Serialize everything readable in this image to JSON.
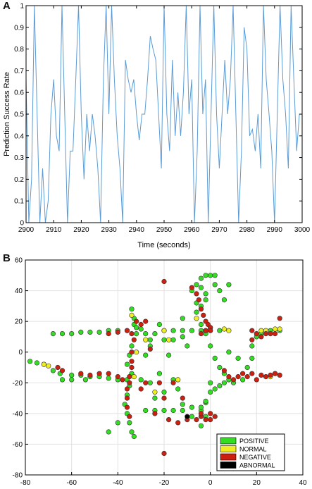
{
  "panels": {
    "a_label": "A",
    "b_label": "B"
  },
  "chart_data": [
    {
      "type": "line",
      "title": "",
      "xlabel": "Time (seconds)",
      "ylabel": "Prediction Success Rate",
      "xlim": [
        2900,
        3000
      ],
      "ylim": [
        0,
        1
      ],
      "xticks": [
        2900,
        2910,
        2920,
        2930,
        2940,
        2950,
        2960,
        2970,
        2980,
        2990,
        3000
      ],
      "yticks": [
        0,
        0.1,
        0.2,
        0.3,
        0.4,
        0.5,
        0.6,
        0.7,
        0.8,
        0.9,
        1
      ],
      "grid": false,
      "color": "#5b9bd5",
      "series": [
        {
          "x": [
            2900,
            2901,
            2902,
            2903,
            2904,
            2905,
            2906,
            2907,
            2908,
            2909,
            2910,
            2911,
            2912,
            2913,
            2914,
            2915,
            2916,
            2917,
            2918,
            2919,
            2920,
            2921,
            2922,
            2923,
            2924,
            2925,
            2926,
            2927,
            2928,
            2929,
            2930,
            2931,
            2932,
            2933,
            2934,
            2935,
            2936,
            2937,
            2938,
            2939,
            2940,
            2941,
            2942,
            2943,
            2944,
            2945,
            2946,
            2947,
            2948,
            2949,
            2950,
            2951,
            2952,
            2953,
            2954,
            2955,
            2956,
            2957,
            2958,
            2959,
            2960,
            2961,
            2962,
            2963,
            2964,
            2965,
            2966,
            2967,
            2968,
            2969,
            2970,
            2971,
            2972,
            2973,
            2974,
            2975,
            2976,
            2977,
            2978,
            2979,
            2980,
            2981,
            2982,
            2983,
            2984,
            2985,
            2986,
            2987,
            2988,
            2989,
            2990,
            2991,
            2992,
            2993,
            2994,
            2995,
            2996,
            2997,
            2998,
            2999,
            3000
          ],
          "values": [
            0.66,
            0,
            0.2,
            1,
            0.5,
            0,
            0.25,
            0,
            0.1,
            0.5,
            0.66,
            0.4,
            0.33,
            1,
            0.5,
            0,
            0.33,
            0.33,
            0.66,
            1,
            0.5,
            0.2,
            0.5,
            0.33,
            0.5,
            0.4,
            0.25,
            0,
            0.66,
            1,
            0.5,
            1,
            0.66,
            0.4,
            0.25,
            0,
            0.75,
            0.66,
            0.6,
            0.66,
            0.5,
            0.38,
            0.5,
            0.5,
            0.66,
            0.86,
            0.8,
            0.75,
            0.5,
            0.25,
            1,
            0.5,
            0.33,
            0.75,
            0.4,
            0.6,
            0.4,
            0.6,
            1,
            0.5,
            0.66,
            0,
            0.33,
            1,
            0.5,
            0.66,
            0,
            0.5,
            1,
            0.5,
            0.25,
            0.5,
            0.75,
            0.5,
            0.66,
            1,
            0.5,
            0,
            0.33,
            0.9,
            0.8,
            0.4,
            0.43,
            0.33,
            0.5,
            0.25,
            1,
            0.66,
            0.5,
            0.33,
            0,
            0.5,
            1,
            0.66,
            0.5,
            0.25,
            1,
            0.66,
            0.33,
            0.5,
            0.5
          ]
        }
      ]
    },
    {
      "type": "scatter",
      "title": "",
      "xlim": [
        -80,
        40
      ],
      "ylim": [
        -80,
        60
      ],
      "xticks": [
        -80,
        -60,
        -40,
        -20,
        0,
        20,
        40
      ],
      "yticks": [
        -80,
        -60,
        -40,
        -20,
        0,
        20,
        40,
        60
      ],
      "grid": true,
      "legend_position": "bottom-right",
      "series": [
        {
          "name": "POSITIVE",
          "color": "#33dd22",
          "points": [
            [
              -78,
              -6
            ],
            [
              -75,
              -7
            ],
            [
              -72,
              -8
            ],
            [
              -68,
              -12
            ],
            [
              -65,
              -14
            ],
            [
              -60,
              -15
            ],
            [
              -56,
              -15
            ],
            [
              -52,
              -16
            ],
            [
              -48,
              -16
            ],
            [
              -44,
              -17
            ],
            [
              -40,
              -18
            ],
            [
              -36,
              -18
            ],
            [
              -60,
              -18
            ],
            [
              -54,
              -18
            ],
            [
              -64,
              -18
            ],
            [
              -68,
              12
            ],
            [
              -64,
              12
            ],
            [
              -60,
              12
            ],
            [
              -56,
              13
            ],
            [
              -52,
              13
            ],
            [
              -48,
              13
            ],
            [
              -44,
              14
            ],
            [
              -40,
              14
            ],
            [
              -36,
              14
            ],
            [
              -34,
              28
            ],
            [
              -33,
              22
            ],
            [
              -33,
              18
            ],
            [
              -32,
              12
            ],
            [
              -34,
              4
            ],
            [
              -35,
              -2
            ],
            [
              -36,
              -8
            ],
            [
              -34,
              -14
            ],
            [
              -35,
              -22
            ],
            [
              -36,
              -28
            ],
            [
              -37,
              -34
            ],
            [
              -36,
              -40
            ],
            [
              -35,
              -46
            ],
            [
              -34,
              -52
            ],
            [
              -33,
              -55
            ],
            [
              -32,
              16
            ],
            [
              -30,
              15
            ],
            [
              -28,
              12
            ],
            [
              -26,
              -20
            ],
            [
              -24,
              -30
            ],
            [
              -28,
              -38
            ],
            [
              -24,
              -38
            ],
            [
              -20,
              -38
            ],
            [
              -16,
              -38
            ],
            [
              -12,
              -38
            ],
            [
              -8,
              -36
            ],
            [
              -4,
              -38
            ],
            [
              -2,
              -33
            ],
            [
              -26,
              4
            ],
            [
              -28,
              -2
            ],
            [
              -22,
              -14
            ],
            [
              -20,
              -26
            ],
            [
              -16,
              -18
            ],
            [
              -14,
              -24
            ],
            [
              -12,
              -34
            ],
            [
              -20,
              14
            ],
            [
              -16,
              14
            ],
            [
              -12,
              14
            ],
            [
              -8,
              14
            ],
            [
              -4,
              14
            ],
            [
              0,
              14
            ],
            [
              4,
              14
            ],
            [
              -22,
              18
            ],
            [
              -24,
              12
            ],
            [
              -20,
              8
            ],
            [
              -16,
              8
            ],
            [
              -12,
              10
            ],
            [
              -10,
              4
            ],
            [
              -12,
              22
            ],
            [
              -6,
              26
            ],
            [
              -4,
              30
            ],
            [
              -2,
              34
            ],
            [
              -8,
              40
            ],
            [
              -6,
              44
            ],
            [
              -4,
              48
            ],
            [
              -2,
              50
            ],
            [
              0,
              50
            ],
            [
              2,
              50
            ],
            [
              -4,
              42
            ],
            [
              -2,
              38
            ],
            [
              -6,
              32
            ],
            [
              4,
              40
            ],
            [
              2,
              44
            ],
            [
              8,
              44
            ],
            [
              6,
              34
            ],
            [
              -4,
              18
            ],
            [
              -2,
              12
            ],
            [
              0,
              4
            ],
            [
              2,
              -4
            ],
            [
              4,
              -10
            ],
            [
              6,
              -14
            ],
            [
              8,
              -18
            ],
            [
              10,
              -20
            ],
            [
              14,
              -18
            ],
            [
              16,
              -10
            ],
            [
              18,
              -4
            ],
            [
              18,
              4
            ],
            [
              20,
              10
            ],
            [
              22,
              12
            ],
            [
              26,
              14
            ],
            [
              30,
              14
            ],
            [
              0,
              -20
            ],
            [
              2,
              -24
            ],
            [
              4,
              -22
            ],
            [
              6,
              -20
            ],
            [
              0,
              -26
            ],
            [
              -2,
              -32
            ],
            [
              -4,
              -36
            ],
            [
              -2,
              -42
            ],
            [
              -4,
              -48
            ],
            [
              -44,
              -52
            ],
            [
              -40,
              -46
            ],
            [
              -8,
              -42
            ],
            [
              8,
              0
            ],
            [
              12,
              -4
            ],
            [
              -30,
              -18
            ],
            [
              -18,
              -2
            ],
            [
              -26,
              8
            ]
          ]
        },
        {
          "name": "NORMAL",
          "color": "#eeee22",
          "points": [
            [
              -72,
              -8
            ],
            [
              -70,
              -9
            ],
            [
              -34,
              24
            ],
            [
              -33,
              -16
            ],
            [
              -32,
              0
            ],
            [
              -28,
              8
            ],
            [
              -24,
              -26
            ],
            [
              -20,
              14
            ],
            [
              -18,
              8
            ],
            [
              -6,
              22
            ],
            [
              -2,
              14
            ],
            [
              0,
              16
            ],
            [
              6,
              15
            ],
            [
              8,
              14
            ],
            [
              22,
              14
            ],
            [
              24,
              14
            ],
            [
              28,
              15
            ],
            [
              30,
              15
            ],
            [
              -14,
              -18
            ],
            [
              26,
              -16
            ],
            [
              28,
              -14
            ]
          ]
        },
        {
          "name": "NEGATIVE",
          "color": "#cc1f0f",
          "points": [
            [
              -66,
              -10
            ],
            [
              -64,
              -12
            ],
            [
              -56,
              -14
            ],
            [
              -52,
              -15
            ],
            [
              -48,
              -14
            ],
            [
              -44,
              -14
            ],
            [
              -40,
              -16
            ],
            [
              -38,
              -18
            ],
            [
              -44,
              12
            ],
            [
              -40,
              13
            ],
            [
              -36,
              14
            ],
            [
              -34,
              12
            ],
            [
              -33,
              8
            ],
            [
              -34,
              0
            ],
            [
              -34,
              -6
            ],
            [
              -34,
              -10
            ],
            [
              -35,
              -16
            ],
            [
              -35,
              -20
            ],
            [
              -36,
              -24
            ],
            [
              -36,
              -30
            ],
            [
              -36,
              -36
            ],
            [
              -35,
              -42
            ],
            [
              -32,
              20
            ],
            [
              -30,
              18
            ],
            [
              -28,
              20
            ],
            [
              -12,
              -30
            ],
            [
              -20,
              -30
            ],
            [
              -24,
              -40
            ],
            [
              -18,
              -44
            ],
            [
              -14,
              -46
            ],
            [
              -10,
              -44
            ],
            [
              -6,
              -44
            ],
            [
              -4,
              -42
            ],
            [
              -2,
              -44
            ],
            [
              0,
              -44
            ],
            [
              0,
              -40
            ],
            [
              -4,
              -40
            ],
            [
              2,
              -42
            ],
            [
              -20,
              46
            ],
            [
              -8,
              42
            ],
            [
              -6,
              38
            ],
            [
              -5,
              34
            ],
            [
              -4,
              28
            ],
            [
              -3,
              24
            ],
            [
              -2,
              20
            ],
            [
              -1,
              18
            ],
            [
              0,
              16
            ],
            [
              0,
              14
            ],
            [
              -2,
              14
            ],
            [
              -4,
              12
            ],
            [
              -20,
              -66
            ],
            [
              -22,
              -20
            ],
            [
              6,
              -12
            ],
            [
              10,
              -18
            ],
            [
              14,
              -14
            ],
            [
              18,
              -14
            ],
            [
              22,
              -15
            ],
            [
              24,
              -16
            ],
            [
              26,
              -15
            ],
            [
              28,
              -14
            ],
            [
              30,
              -15
            ],
            [
              16,
              -16
            ],
            [
              20,
              -18
            ],
            [
              12,
              -16
            ],
            [
              8,
              -16
            ],
            [
              18,
              8
            ],
            [
              20,
              12
            ],
            [
              22,
              10
            ],
            [
              24,
              12
            ],
            [
              26,
              12
            ],
            [
              28,
              12
            ],
            [
              30,
              22
            ],
            [
              18,
              14
            ],
            [
              -30,
              -24
            ],
            [
              -28,
              -20
            ],
            [
              -16,
              -20
            ],
            [
              -26,
              2
            ]
          ]
        },
        {
          "name": "ABNORMAL",
          "color": "#000000",
          "points": [
            [
              -10,
              -42
            ]
          ]
        }
      ]
    }
  ]
}
